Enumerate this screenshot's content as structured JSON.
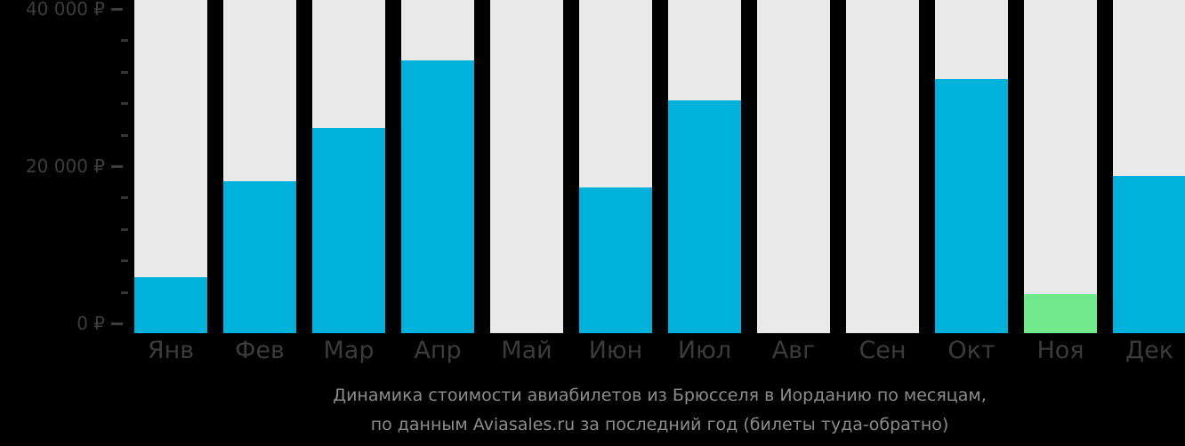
{
  "chart_data": {
    "type": "bar",
    "title_lines": [
      "Динамика стоимости авиабилетов из Брюсселя в Иорданию по месяцам,",
      "по данным Aviasales.ru за последний год (билеты туда-обратно)"
    ],
    "categories": [
      "Янв",
      "Фев",
      "Мар",
      "Апр",
      "Май",
      "Июн",
      "Июл",
      "Авг",
      "Сен",
      "Окт",
      "Ноя",
      "Дек"
    ],
    "values": [
      5900,
      18100,
      24900,
      33400,
      null,
      17300,
      28400,
      null,
      null,
      31100,
      3700,
      18800
    ],
    "bar_color_keys": [
      "blue",
      "blue",
      "blue",
      "blue",
      null,
      "blue",
      "blue",
      null,
      null,
      "blue",
      "green",
      "blue"
    ],
    "highlight_note": "green bar = cheapest month (Ноя)",
    "xlabel": "",
    "ylabel": "",
    "currency": "₽",
    "y_major_ticks": [
      {
        "value": 0,
        "label": "0 ₽"
      },
      {
        "value": 20000,
        "label": "20 000 ₽"
      },
      {
        "value": 40000,
        "label": "40 000 ₽"
      }
    ],
    "y_minor_tick_step": 4000,
    "ylim": [
      0,
      41000
    ],
    "grid": false,
    "legend": false,
    "colors": {
      "bar_blue": "#00b1dc",
      "bar_green": "#6fe98c",
      "column_bg": "#e9e9e9",
      "background": "#000000",
      "axis_text": "#3d3d3d",
      "minor_tick": "#343434",
      "title_text": "#8c8c8c"
    }
  }
}
